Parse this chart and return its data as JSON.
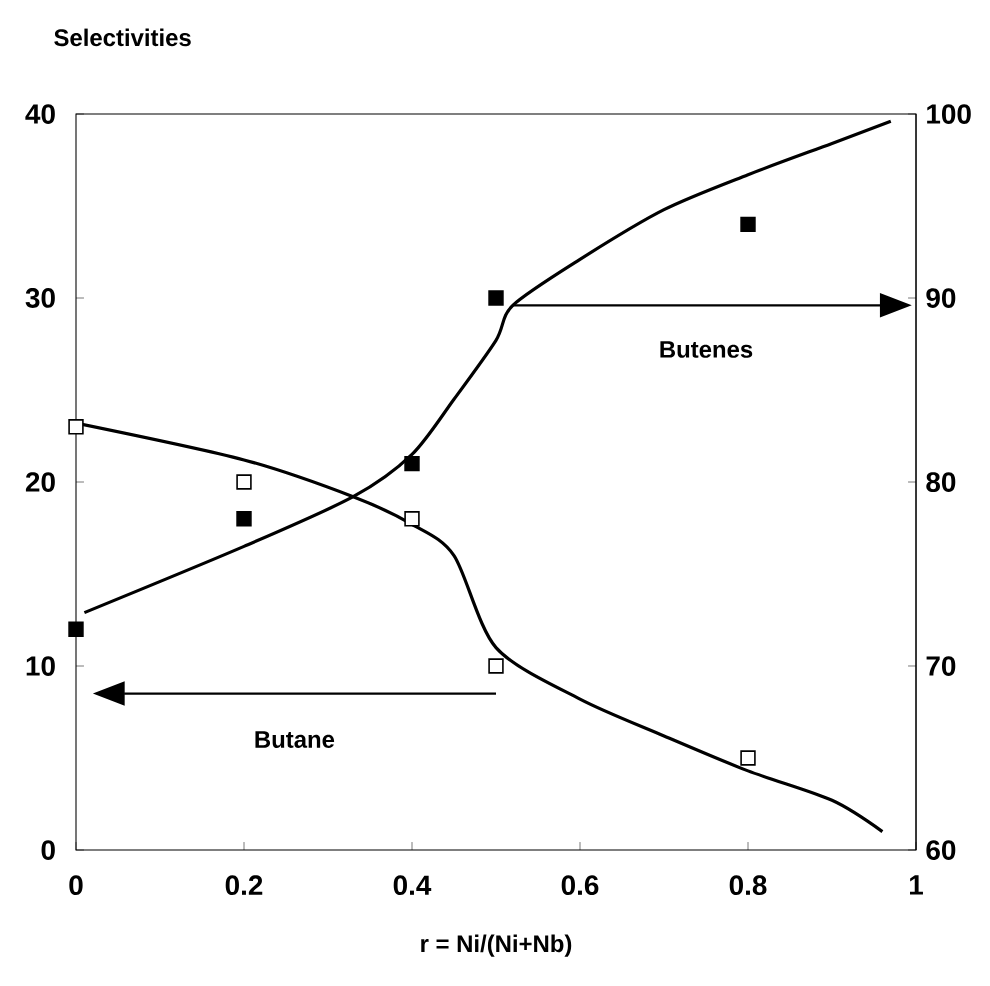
{
  "chart_data": {
    "type": "scatter",
    "ylabel": "Selectivities",
    "xlabel": "r = Ni/(Ni+Nb)",
    "annotations": [
      "Butane",
      "Butenes"
    ],
    "x": [
      0,
      0.2,
      0.4,
      0.5,
      0.8
    ],
    "xlim": [
      0,
      1
    ],
    "xticks": [
      0,
      0.2,
      0.4,
      0.6,
      0.8,
      1
    ],
    "ylim": [
      0,
      40
    ],
    "yticks": [
      0,
      10,
      20,
      30,
      40
    ],
    "y2lim": [
      60,
      100
    ],
    "y2ticks": [
      60,
      70,
      80,
      90,
      100
    ],
    "marker": "square",
    "series": [
      {
        "color": "#ffffff",
        "values": [
          23,
          20,
          18,
          10,
          5
        ]
      },
      {
        "axis": "y2",
        "color": "#000000",
        "values": [
          72,
          78,
          81,
          90,
          94
        ]
      },
      {
        "type": "line",
        "marker": "none",
        "color": "#000000",
        "x": [
          0,
          0.2,
          0.33,
          0.4,
          0.45,
          0.5,
          0.6,
          0.7,
          0.8,
          0.9,
          0.96
        ],
        "values": [
          23.2,
          21.2,
          19.2,
          17.7,
          16,
          11,
          8.2,
          6.2,
          4.3,
          2.7,
          1
        ]
      },
      {
        "type": "line",
        "marker": "none",
        "axis": "y2",
        "color": "#000000",
        "x": [
          0.01,
          0.2,
          0.33,
          0.4,
          0.45,
          0.5,
          0.52,
          0.6,
          0.7,
          0.8,
          0.9,
          0.97
        ],
        "values": [
          72.9,
          76.5,
          79.2,
          81.5,
          84.5,
          87.7,
          89.6,
          92.1,
          94.8,
          96.7,
          98.4,
          99.6
        ]
      }
    ]
  }
}
